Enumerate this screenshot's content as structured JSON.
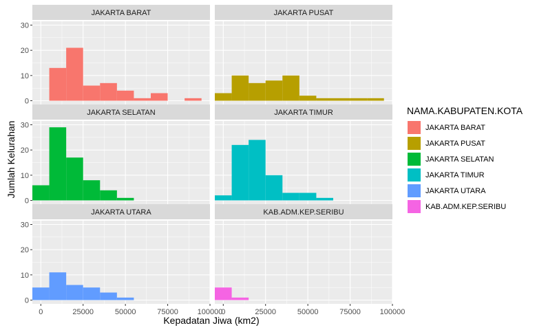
{
  "chart_data": {
    "type": "bar",
    "chart_kind": "faceted histogram",
    "xlabel": "Kepadatan Jiwa (km2)",
    "ylabel": "Jumlah Kelurahan",
    "xlim": [
      -5000,
      100000
    ],
    "ylim": [
      0,
      30
    ],
    "x_ticks": [
      0,
      25000,
      50000,
      75000,
      100000
    ],
    "y_ticks": [
      0,
      10,
      20,
      30
    ],
    "bin_width": 10000,
    "grid": true,
    "legend_title": "NAMA.KABUPATEN.KOTA",
    "legend_position": "right",
    "facets": [
      {
        "name": "JAKARTA BARAT",
        "color": "#F8766D",
        "bins": [
          {
            "x0": 5000,
            "x1": 15000,
            "count": 13
          },
          {
            "x0": 15000,
            "x1": 25000,
            "count": 21
          },
          {
            "x0": 25000,
            "x1": 35000,
            "count": 6
          },
          {
            "x0": 35000,
            "x1": 45000,
            "count": 7
          },
          {
            "x0": 45000,
            "x1": 55000,
            "count": 4
          },
          {
            "x0": 55000,
            "x1": 65000,
            "count": 1
          },
          {
            "x0": 65000,
            "x1": 75000,
            "count": 3
          },
          {
            "x0": 85000,
            "x1": 95000,
            "count": 1
          }
        ]
      },
      {
        "name": "JAKARTA PUSAT",
        "color": "#B79F00",
        "bins": [
          {
            "x0": -5000,
            "x1": 5000,
            "count": 3
          },
          {
            "x0": 5000,
            "x1": 15000,
            "count": 10
          },
          {
            "x0": 15000,
            "x1": 25000,
            "count": 7
          },
          {
            "x0": 25000,
            "x1": 35000,
            "count": 8
          },
          {
            "x0": 35000,
            "x1": 45000,
            "count": 10
          },
          {
            "x0": 45000,
            "x1": 55000,
            "count": 2
          },
          {
            "x0": 55000,
            "x1": 65000,
            "count": 1
          },
          {
            "x0": 65000,
            "x1": 75000,
            "count": 1
          },
          {
            "x0": 75000,
            "x1": 85000,
            "count": 1
          },
          {
            "x0": 85000,
            "x1": 95000,
            "count": 1
          }
        ]
      },
      {
        "name": "JAKARTA SELATAN",
        "color": "#00BA38",
        "bins": [
          {
            "x0": -5000,
            "x1": 5000,
            "count": 6
          },
          {
            "x0": 5000,
            "x1": 15000,
            "count": 29
          },
          {
            "x0": 15000,
            "x1": 25000,
            "count": 17
          },
          {
            "x0": 25000,
            "x1": 35000,
            "count": 8
          },
          {
            "x0": 35000,
            "x1": 45000,
            "count": 4
          },
          {
            "x0": 45000,
            "x1": 55000,
            "count": 1
          }
        ]
      },
      {
        "name": "JAKARTA TIMUR",
        "color": "#00BFC4",
        "bins": [
          {
            "x0": -5000,
            "x1": 5000,
            "count": 2
          },
          {
            "x0": 5000,
            "x1": 15000,
            "count": 22
          },
          {
            "x0": 15000,
            "x1": 25000,
            "count": 24
          },
          {
            "x0": 25000,
            "x1": 35000,
            "count": 10
          },
          {
            "x0": 35000,
            "x1": 45000,
            "count": 3
          },
          {
            "x0": 45000,
            "x1": 55000,
            "count": 3
          },
          {
            "x0": 55000,
            "x1": 65000,
            "count": 1
          }
        ]
      },
      {
        "name": "JAKARTA UTARA",
        "color": "#619CFF",
        "bins": [
          {
            "x0": -5000,
            "x1": 5000,
            "count": 5
          },
          {
            "x0": 5000,
            "x1": 15000,
            "count": 11
          },
          {
            "x0": 15000,
            "x1": 25000,
            "count": 6
          },
          {
            "x0": 25000,
            "x1": 35000,
            "count": 5
          },
          {
            "x0": 35000,
            "x1": 45000,
            "count": 3
          },
          {
            "x0": 45000,
            "x1": 55000,
            "count": 1
          }
        ]
      },
      {
        "name": "KAB.ADM.KEP.SERIBU",
        "color": "#F564E3",
        "bins": [
          {
            "x0": -5000,
            "x1": 5000,
            "count": 5
          },
          {
            "x0": 5000,
            "x1": 15000,
            "count": 1
          }
        ]
      }
    ]
  }
}
